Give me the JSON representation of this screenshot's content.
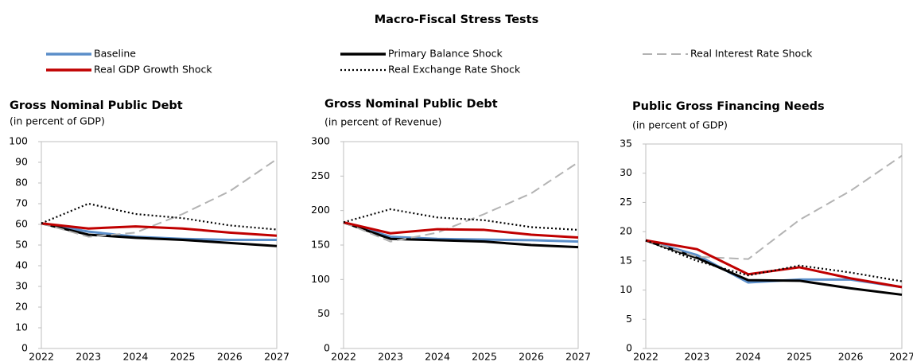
{
  "title": "Macro-Fiscal Stress Tests",
  "chart_data": [
    {
      "type": "line",
      "title": "Gross Nominal Public Debt",
      "subtitle": "(in percent of GDP)",
      "categories": [
        "2022",
        "2023",
        "2024",
        "2025",
        "2026",
        "2027"
      ],
      "ylim": [
        0,
        100
      ],
      "yticks": [
        0,
        10,
        20,
        30,
        40,
        50,
        60,
        70,
        80,
        90,
        100
      ],
      "series": [
        {
          "name": "Baseline",
          "color": "#5b8ec9",
          "dash": "solid",
          "values": [
            60.5,
            56.5,
            54,
            53,
            52.5,
            52.5
          ]
        },
        {
          "name": "Primary Balance Shock",
          "color": "#000000",
          "dash": "solid",
          "values": [
            60.5,
            55,
            53.5,
            52.5,
            51,
            49.5
          ]
        },
        {
          "name": "Real Interest Rate Shock",
          "color": "#b3b3b3",
          "dash": "dashed",
          "values": [
            60.5,
            54,
            56,
            65,
            76,
            91.5
          ]
        },
        {
          "name": "Real GDP Growth Shock",
          "color": "#c00000",
          "dash": "solid",
          "values": [
            60.5,
            58,
            59,
            58,
            56,
            54.5
          ]
        },
        {
          "name": "Real Exchange Rate Shock",
          "color": "#000000",
          "dash": "dotted",
          "values": [
            60.5,
            70,
            65,
            63,
            59.5,
            57.5
          ]
        }
      ]
    },
    {
      "type": "line",
      "title": "Gross Nominal Public Debt",
      "subtitle": "(in percent of Revenue)",
      "categories": [
        "2022",
        "2023",
        "2024",
        "2025",
        "2026",
        "2027"
      ],
      "ylim": [
        0,
        300
      ],
      "yticks": [
        0,
        50,
        100,
        150,
        200,
        250,
        300
      ],
      "series": [
        {
          "name": "Baseline",
          "color": "#5b8ec9",
          "dash": "solid",
          "values": [
            183,
            162,
            159,
            158,
            157,
            155
          ]
        },
        {
          "name": "Primary Balance Shock",
          "color": "#000000",
          "dash": "solid",
          "values": [
            183,
            159,
            157,
            155,
            150,
            147
          ]
        },
        {
          "name": "Real Interest Rate Shock",
          "color": "#b3b3b3",
          "dash": "dashed",
          "values": [
            183,
            155,
            168,
            195,
            225,
            270
          ]
        },
        {
          "name": "Real GDP Growth Shock",
          "color": "#c00000",
          "dash": "solid",
          "values": [
            183,
            167,
            173,
            172,
            165,
            161
          ]
        },
        {
          "name": "Real Exchange Rate Shock",
          "color": "#000000",
          "dash": "dotted",
          "values": [
            183,
            202,
            190,
            186,
            176,
            172
          ]
        }
      ]
    },
    {
      "type": "line",
      "title": "Public Gross Financing Needs",
      "subtitle": "(in percent of GDP)",
      "categories": [
        "2022",
        "2023",
        "2024",
        "2025",
        "2026",
        "2027"
      ],
      "ylim": [
        0,
        35
      ],
      "yticks": [
        0,
        5,
        10,
        15,
        20,
        25,
        30,
        35
      ],
      "series": [
        {
          "name": "Baseline",
          "color": "#5b8ec9",
          "dash": "solid",
          "values": [
            18.5,
            16,
            11.3,
            11.8,
            11.8,
            10.5
          ]
        },
        {
          "name": "Primary Balance Shock",
          "color": "#000000",
          "dash": "solid",
          "values": [
            18.5,
            15.5,
            11.7,
            11.6,
            10.3,
            9.2
          ]
        },
        {
          "name": "Real Interest Rate Shock",
          "color": "#b3b3b3",
          "dash": "dashed",
          "values": [
            18.5,
            15.7,
            15.3,
            22,
            27,
            33
          ]
        },
        {
          "name": "Real GDP Growth Shock",
          "color": "#c00000",
          "dash": "solid",
          "values": [
            18.5,
            17,
            12.7,
            13.9,
            12,
            10.5
          ]
        },
        {
          "name": "Real Exchange Rate Shock",
          "color": "#000000",
          "dash": "dotted",
          "values": [
            18.5,
            15,
            12.5,
            14.2,
            13,
            11.5
          ]
        }
      ]
    }
  ]
}
